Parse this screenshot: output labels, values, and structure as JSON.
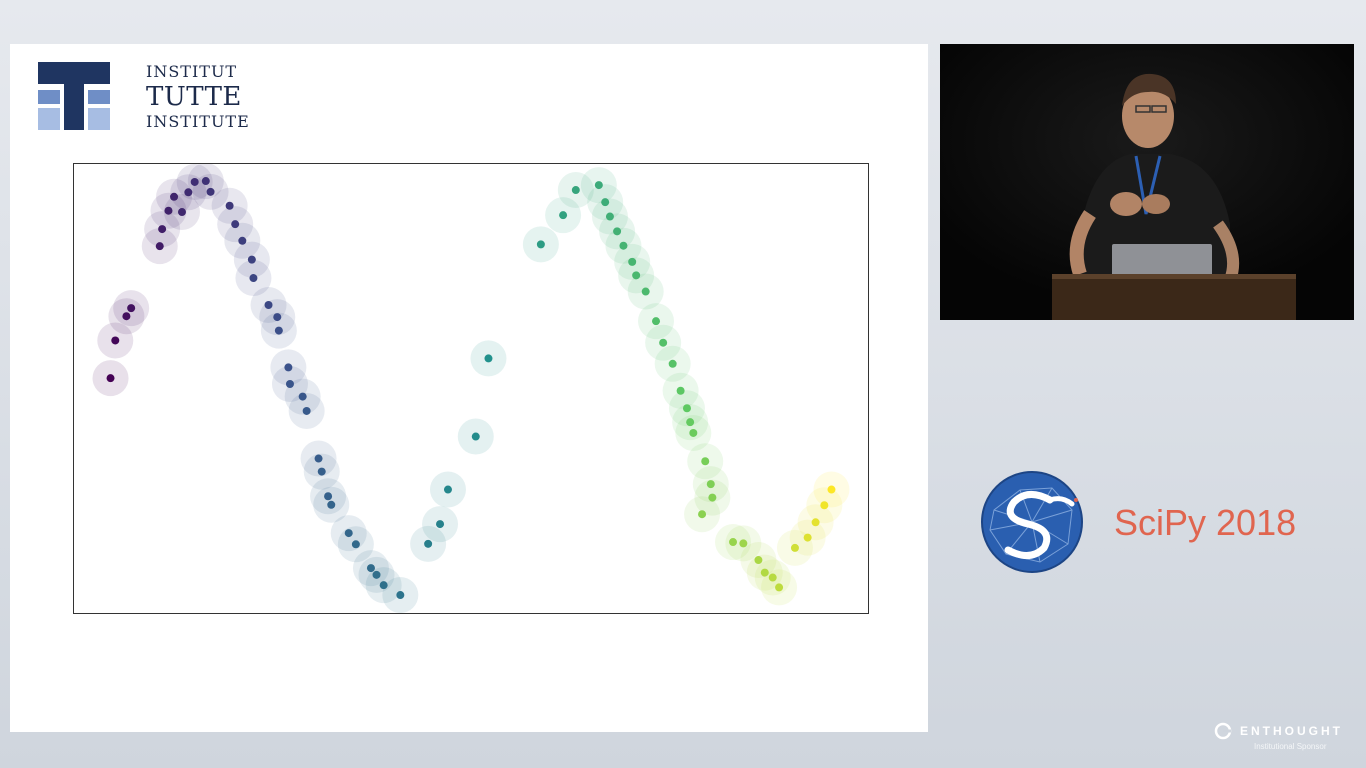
{
  "slide": {
    "logo": {
      "line1": "INSTITUT",
      "line2": "TUTTE",
      "line3": "INSTITUTE"
    },
    "icon": "tutte-institute-logo"
  },
  "chart_data": {
    "type": "scatter",
    "title": "",
    "xlabel": "",
    "ylabel": "",
    "grid": false,
    "legend": "none",
    "colormap": "viridis",
    "xlim": [
      0,
      1
    ],
    "ylim": [
      0,
      1
    ],
    "series": [
      {
        "values": [
          {
            "x": 0.046,
            "y": 0.523,
            "c": 0.0
          },
          {
            "x": 0.052,
            "y": 0.607,
            "c": 0.02
          },
          {
            "x": 0.066,
            "y": 0.661,
            "c": 0.04
          },
          {
            "x": 0.072,
            "y": 0.679,
            "c": 0.05
          },
          {
            "x": 0.108,
            "y": 0.817,
            "c": 0.08
          },
          {
            "x": 0.111,
            "y": 0.855,
            "c": 0.09
          },
          {
            "x": 0.119,
            "y": 0.896,
            "c": 0.1
          },
          {
            "x": 0.126,
            "y": 0.927,
            "c": 0.11
          },
          {
            "x": 0.136,
            "y": 0.893,
            "c": 0.12
          },
          {
            "x": 0.144,
            "y": 0.937,
            "c": 0.13
          },
          {
            "x": 0.152,
            "y": 0.96,
            "c": 0.14
          },
          {
            "x": 0.166,
            "y": 0.962,
            "c": 0.15
          },
          {
            "x": 0.172,
            "y": 0.938,
            "c": 0.16
          },
          {
            "x": 0.196,
            "y": 0.907,
            "c": 0.17
          },
          {
            "x": 0.203,
            "y": 0.866,
            "c": 0.18
          },
          {
            "x": 0.212,
            "y": 0.829,
            "c": 0.19
          },
          {
            "x": 0.224,
            "y": 0.787,
            "c": 0.2
          },
          {
            "x": 0.226,
            "y": 0.746,
            "c": 0.21
          },
          {
            "x": 0.245,
            "y": 0.686,
            "c": 0.22
          },
          {
            "x": 0.256,
            "y": 0.659,
            "c": 0.23
          },
          {
            "x": 0.258,
            "y": 0.629,
            "c": 0.24
          },
          {
            "x": 0.27,
            "y": 0.547,
            "c": 0.25
          },
          {
            "x": 0.272,
            "y": 0.51,
            "c": 0.26
          },
          {
            "x": 0.288,
            "y": 0.482,
            "c": 0.27
          },
          {
            "x": 0.293,
            "y": 0.45,
            "c": 0.28
          },
          {
            "x": 0.308,
            "y": 0.344,
            "c": 0.29
          },
          {
            "x": 0.312,
            "y": 0.315,
            "c": 0.3
          },
          {
            "x": 0.32,
            "y": 0.26,
            "c": 0.31
          },
          {
            "x": 0.324,
            "y": 0.241,
            "c": 0.32
          },
          {
            "x": 0.346,
            "y": 0.178,
            "c": 0.33
          },
          {
            "x": 0.355,
            "y": 0.153,
            "c": 0.34
          },
          {
            "x": 0.374,
            "y": 0.1,
            "c": 0.35
          },
          {
            "x": 0.381,
            "y": 0.085,
            "c": 0.36
          },
          {
            "x": 0.39,
            "y": 0.062,
            "c": 0.37
          },
          {
            "x": 0.411,
            "y": 0.04,
            "c": 0.38
          },
          {
            "x": 0.446,
            "y": 0.154,
            "c": 0.43
          },
          {
            "x": 0.461,
            "y": 0.198,
            "c": 0.44
          },
          {
            "x": 0.471,
            "y": 0.275,
            "c": 0.46
          },
          {
            "x": 0.506,
            "y": 0.393,
            "c": 0.48
          },
          {
            "x": 0.522,
            "y": 0.567,
            "c": 0.5
          },
          {
            "x": 0.588,
            "y": 0.821,
            "c": 0.55
          },
          {
            "x": 0.616,
            "y": 0.886,
            "c": 0.57
          },
          {
            "x": 0.632,
            "y": 0.942,
            "c": 0.59
          },
          {
            "x": 0.661,
            "y": 0.953,
            "c": 0.61
          },
          {
            "x": 0.669,
            "y": 0.915,
            "c": 0.62
          },
          {
            "x": 0.675,
            "y": 0.883,
            "c": 0.63
          },
          {
            "x": 0.684,
            "y": 0.85,
            "c": 0.64
          },
          {
            "x": 0.692,
            "y": 0.818,
            "c": 0.65
          },
          {
            "x": 0.703,
            "y": 0.782,
            "c": 0.66
          },
          {
            "x": 0.708,
            "y": 0.752,
            "c": 0.67
          },
          {
            "x": 0.72,
            "y": 0.716,
            "c": 0.68
          },
          {
            "x": 0.733,
            "y": 0.65,
            "c": 0.7
          },
          {
            "x": 0.742,
            "y": 0.602,
            "c": 0.71
          },
          {
            "x": 0.754,
            "y": 0.555,
            "c": 0.72
          },
          {
            "x": 0.764,
            "y": 0.495,
            "c": 0.74
          },
          {
            "x": 0.772,
            "y": 0.456,
            "c": 0.75
          },
          {
            "x": 0.776,
            "y": 0.425,
            "c": 0.76
          },
          {
            "x": 0.78,
            "y": 0.401,
            "c": 0.77
          },
          {
            "x": 0.795,
            "y": 0.338,
            "c": 0.79
          },
          {
            "x": 0.802,
            "y": 0.287,
            "c": 0.8
          },
          {
            "x": 0.804,
            "y": 0.257,
            "c": 0.81
          },
          {
            "x": 0.791,
            "y": 0.22,
            "c": 0.82
          },
          {
            "x": 0.83,
            "y": 0.158,
            "c": 0.84
          },
          {
            "x": 0.843,
            "y": 0.155,
            "c": 0.85
          },
          {
            "x": 0.862,
            "y": 0.118,
            "c": 0.87
          },
          {
            "x": 0.87,
            "y": 0.09,
            "c": 0.88
          },
          {
            "x": 0.88,
            "y": 0.079,
            "c": 0.89
          },
          {
            "x": 0.888,
            "y": 0.057,
            "c": 0.9
          },
          {
            "x": 0.908,
            "y": 0.145,
            "c": 0.93
          },
          {
            "x": 0.924,
            "y": 0.168,
            "c": 0.95
          },
          {
            "x": 0.934,
            "y": 0.202,
            "c": 0.96
          },
          {
            "x": 0.945,
            "y": 0.24,
            "c": 0.98
          },
          {
            "x": 0.954,
            "y": 0.275,
            "c": 1.0
          }
        ]
      }
    ]
  },
  "video": {
    "description_icon": "speaker-at-podium"
  },
  "scipy": {
    "label": "SciPy 2018",
    "icon": "scipy-logo"
  },
  "sponsor": {
    "name": "ENTHOUGHT",
    "sub": "Institutional Sponsor",
    "icon": "enthought-logo"
  }
}
